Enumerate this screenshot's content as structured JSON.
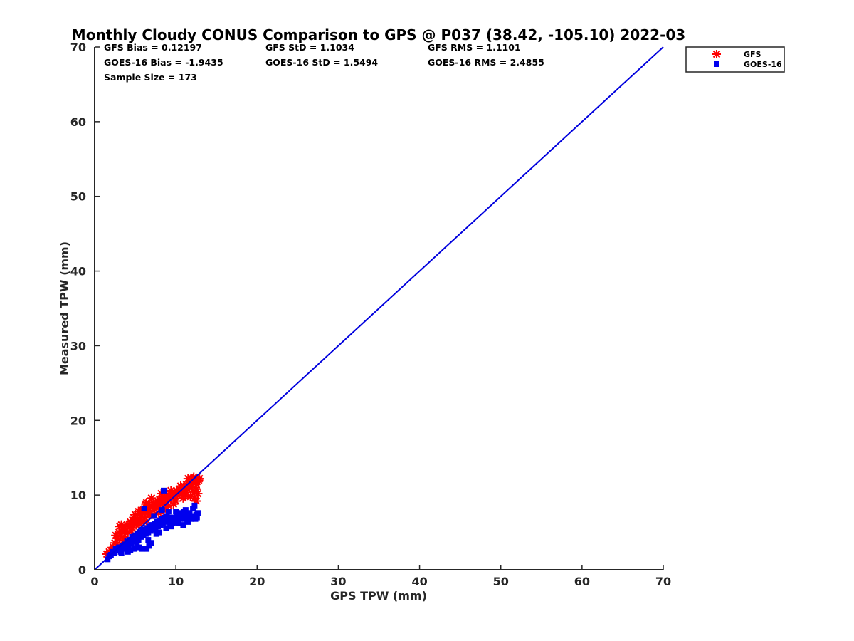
{
  "chart_data": {
    "type": "scatter",
    "title": "Monthly Cloudy CONUS Comparison to GPS @ P037 (38.42, -105.10) 2022-03",
    "xlabel": "GPS TPW (mm)",
    "ylabel": "Measured TPW (mm)",
    "xlim": [
      0,
      70
    ],
    "ylim": [
      0,
      70
    ],
    "xticks": [
      0,
      10,
      20,
      30,
      40,
      50,
      60,
      70
    ],
    "yticks": [
      0,
      10,
      20,
      30,
      40,
      50,
      60,
      70
    ],
    "legend_position": "outside-top-right",
    "stats": {
      "gfs_bias": "GFS Bias = 0.12197",
      "gfs_std": "GFS StD = 1.1034",
      "gfs_rms": "GFS RMS = 1.1101",
      "goes_bias": "GOES-16 Bias = -1.9435",
      "goes_std": "GOES-16 StD = 1.5494",
      "goes_rms": "GOES-16 RMS = 2.4855",
      "sample_size": "Sample Size = 173"
    },
    "reference_line": {
      "name": "1:1 line",
      "x": [
        0,
        70
      ],
      "y": [
        0,
        70
      ],
      "color": "#0000dd"
    },
    "series": [
      {
        "name": "GFS",
        "marker": "asterisk",
        "color": "#ff0000",
        "points": [
          [
            1.5,
            2.1
          ],
          [
            1.8,
            2.4
          ],
          [
            2.0,
            2.6
          ],
          [
            2.3,
            3.0
          ],
          [
            2.5,
            3.6
          ],
          [
            2.6,
            4.6
          ],
          [
            2.8,
            4.2
          ],
          [
            3.0,
            5.0
          ],
          [
            3.1,
            5.8
          ],
          [
            3.2,
            4.8
          ],
          [
            3.4,
            4.4
          ],
          [
            3.5,
            5.4
          ],
          [
            3.7,
            5.6
          ],
          [
            3.8,
            5.2
          ],
          [
            4.0,
            6.0
          ],
          [
            4.1,
            5.0
          ],
          [
            4.3,
            5.8
          ],
          [
            4.4,
            6.4
          ],
          [
            4.6,
            5.6
          ],
          [
            4.7,
            6.6
          ],
          [
            4.9,
            6.2
          ],
          [
            5.0,
            7.4
          ],
          [
            5.1,
            6.0
          ],
          [
            5.3,
            6.8
          ],
          [
            5.4,
            7.8
          ],
          [
            5.6,
            6.6
          ],
          [
            5.7,
            7.2
          ],
          [
            5.9,
            7.6
          ],
          [
            6.0,
            8.0
          ],
          [
            6.2,
            7.0
          ],
          [
            6.3,
            8.8
          ],
          [
            6.5,
            7.6
          ],
          [
            6.6,
            8.2
          ],
          [
            6.8,
            8.6
          ],
          [
            6.9,
            7.8
          ],
          [
            7.1,
            8.4
          ],
          [
            7.2,
            9.0
          ],
          [
            7.4,
            8.2
          ],
          [
            7.5,
            8.8
          ],
          [
            7.7,
            9.2
          ],
          [
            7.8,
            8.6
          ],
          [
            8.0,
            9.4
          ],
          [
            8.1,
            8.8
          ],
          [
            8.3,
            9.6
          ],
          [
            8.4,
            9.0
          ],
          [
            8.6,
            9.8
          ],
          [
            8.7,
            9.2
          ],
          [
            8.9,
            10.0
          ],
          [
            9.0,
            9.4
          ],
          [
            9.2,
            9.8
          ],
          [
            9.3,
            10.2
          ],
          [
            9.5,
            9.6
          ],
          [
            9.6,
            10.0
          ],
          [
            9.8,
            10.4
          ],
          [
            9.9,
            9.8
          ],
          [
            10.1,
            10.6
          ],
          [
            10.2,
            10.0
          ],
          [
            10.4,
            10.8
          ],
          [
            10.5,
            10.2
          ],
          [
            10.7,
            11.0
          ],
          [
            10.8,
            10.4
          ],
          [
            11.0,
            11.2
          ],
          [
            11.1,
            10.6
          ],
          [
            11.3,
            11.4
          ],
          [
            11.4,
            10.8
          ],
          [
            11.6,
            11.6
          ],
          [
            11.7,
            11.0
          ],
          [
            11.9,
            12.0
          ],
          [
            12.0,
            11.4
          ],
          [
            12.1,
            12.2
          ],
          [
            12.2,
            10.4
          ],
          [
            12.3,
            9.6
          ],
          [
            12.4,
            11.6
          ],
          [
            12.5,
            10.8
          ],
          [
            12.6,
            11.8
          ],
          [
            12.7,
            10.2
          ],
          [
            12.8,
            12.0
          ],
          [
            12.5,
            9.2
          ],
          [
            11.8,
            9.8
          ],
          [
            10.9,
            9.6
          ],
          [
            9.7,
            8.8
          ],
          [
            8.8,
            8.4
          ],
          [
            7.9,
            7.6
          ],
          [
            6.7,
            7.2
          ],
          [
            5.5,
            6.2
          ],
          [
            4.5,
            5.2
          ],
          [
            3.6,
            4.0
          ],
          [
            2.7,
            3.4
          ],
          [
            6.4,
            9.0
          ],
          [
            7.0,
            9.6
          ],
          [
            8.2,
            10.2
          ],
          [
            9.4,
            10.6
          ],
          [
            10.6,
            11.2
          ],
          [
            11.5,
            12.2
          ],
          [
            3.3,
            6.0
          ],
          [
            4.8,
            7.0
          ],
          [
            5.8,
            8.0
          ],
          [
            6.1,
            6.4
          ],
          [
            7.3,
            7.4
          ],
          [
            8.5,
            8.0
          ],
          [
            9.1,
            8.6
          ],
          [
            10.0,
            9.2
          ],
          [
            11.2,
            10.0
          ],
          [
            12.4,
            11.0
          ],
          [
            12.9,
            12.2
          ],
          [
            12.2,
            12.4
          ]
        ]
      },
      {
        "name": "GOES-16",
        "marker": "square",
        "color": "#0000ee",
        "points": [
          [
            1.6,
            1.4
          ],
          [
            1.8,
            1.8
          ],
          [
            2.0,
            2.0
          ],
          [
            2.2,
            2.4
          ],
          [
            2.4,
            2.2
          ],
          [
            2.6,
            2.8
          ],
          [
            2.8,
            2.6
          ],
          [
            3.0,
            3.0
          ],
          [
            3.2,
            2.4
          ],
          [
            3.4,
            3.2
          ],
          [
            3.5,
            2.8
          ],
          [
            3.7,
            3.4
          ],
          [
            3.9,
            3.0
          ],
          [
            4.0,
            3.8
          ],
          [
            4.2,
            3.2
          ],
          [
            4.3,
            4.0
          ],
          [
            4.5,
            3.6
          ],
          [
            4.6,
            4.4
          ],
          [
            4.8,
            3.8
          ],
          [
            5.0,
            4.6
          ],
          [
            5.1,
            4.2
          ],
          [
            5.3,
            4.8
          ],
          [
            5.4,
            4.0
          ],
          [
            5.6,
            5.0
          ],
          [
            5.7,
            4.4
          ],
          [
            5.9,
            5.2
          ],
          [
            6.0,
            4.6
          ],
          [
            6.2,
            5.4
          ],
          [
            6.3,
            4.8
          ],
          [
            6.5,
            5.6
          ],
          [
            6.6,
            5.0
          ],
          [
            6.8,
            5.8
          ],
          [
            6.9,
            5.2
          ],
          [
            7.1,
            6.0
          ],
          [
            7.2,
            5.4
          ],
          [
            7.4,
            6.2
          ],
          [
            7.5,
            5.6
          ],
          [
            7.7,
            6.4
          ],
          [
            7.8,
            5.8
          ],
          [
            8.0,
            6.6
          ],
          [
            8.1,
            6.0
          ],
          [
            8.3,
            6.8
          ],
          [
            8.4,
            6.2
          ],
          [
            8.6,
            7.0
          ],
          [
            8.7,
            6.4
          ],
          [
            8.9,
            7.2
          ],
          [
            9.0,
            6.6
          ],
          [
            9.2,
            7.0
          ],
          [
            9.3,
            6.0
          ],
          [
            9.5,
            6.8
          ],
          [
            9.6,
            6.2
          ],
          [
            9.8,
            7.0
          ],
          [
            9.9,
            6.4
          ],
          [
            10.1,
            7.2
          ],
          [
            10.2,
            6.6
          ],
          [
            10.4,
            7.4
          ],
          [
            10.5,
            6.8
          ],
          [
            10.7,
            7.6
          ],
          [
            10.8,
            7.0
          ],
          [
            11.0,
            7.8
          ],
          [
            11.1,
            6.8
          ],
          [
            11.3,
            7.4
          ],
          [
            11.4,
            6.6
          ],
          [
            11.6,
            7.2
          ],
          [
            11.7,
            7.6
          ],
          [
            11.9,
            6.8
          ],
          [
            12.0,
            7.0
          ],
          [
            12.2,
            7.2
          ],
          [
            12.3,
            8.6
          ],
          [
            12.5,
            7.4
          ],
          [
            12.7,
            7.6
          ],
          [
            12.6,
            7.0
          ],
          [
            8.5,
            10.6
          ],
          [
            8.3,
            8.0
          ],
          [
            7.3,
            7.2
          ],
          [
            6.1,
            8.2
          ],
          [
            5.5,
            3.0
          ],
          [
            5.8,
            2.8
          ],
          [
            6.4,
            2.8
          ],
          [
            6.7,
            3.2
          ],
          [
            7.0,
            3.6
          ],
          [
            4.1,
            2.4
          ],
          [
            3.3,
            2.2
          ],
          [
            4.4,
            2.6
          ],
          [
            4.9,
            2.8
          ],
          [
            5.2,
            3.4
          ],
          [
            6.6,
            4.0
          ],
          [
            7.6,
            4.8
          ],
          [
            7.9,
            5.0
          ],
          [
            8.8,
            5.6
          ],
          [
            9.4,
            5.8
          ],
          [
            10.3,
            6.2
          ],
          [
            10.9,
            6.0
          ],
          [
            11.5,
            6.4
          ],
          [
            9.1,
            7.8
          ],
          [
            10.0,
            7.8
          ],
          [
            11.2,
            8.0
          ],
          [
            12.1,
            8.2
          ],
          [
            12.4,
            6.8
          ]
        ]
      }
    ]
  }
}
